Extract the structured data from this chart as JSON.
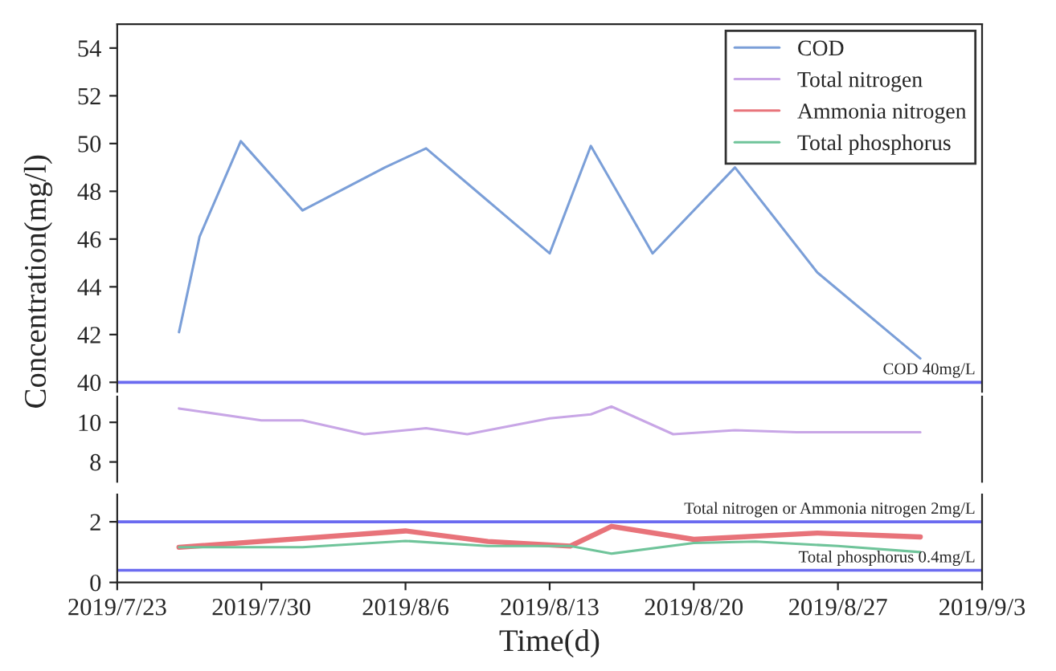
{
  "chart_data": [
    {
      "type": "line",
      "ylabel": "Concentration(mg/l)",
      "legend": "top right",
      "grid": false,
      "tick_labels": "y",
      "xlim": [
        "2019-07-23",
        "2019-09-03"
      ],
      "ylim": [
        39.6,
        55
      ],
      "yticks": [
        40,
        42,
        44,
        46,
        48,
        50,
        52,
        54
      ],
      "series": [
        {
          "name": "COD",
          "color": "#7b9fd8",
          "x": [
            "2019-07-26",
            "2019-07-27",
            "2019-07-29",
            "2019-08-01",
            "2019-08-03",
            "2019-08-05",
            "2019-08-07",
            "2019-08-10",
            "2019-08-13",
            "2019-08-15",
            "2019-08-18",
            "2019-08-22",
            "2019-08-26",
            "2019-08-31"
          ],
          "values": [
            42.1,
            46.1,
            50.1,
            47.2,
            48.1,
            49.0,
            49.8,
            47.6,
            45.4,
            49.9,
            45.4,
            49.0,
            44.6,
            41.0
          ]
        }
      ],
      "ref_lines": [
        {
          "axis": "y",
          "value": 40,
          "label": "COD 40mg/L",
          "color": "#6b6bf0"
        }
      ]
    },
    {
      "type": "line",
      "legend": "top right",
      "grid": false,
      "tick_labels": "y",
      "xlim": [
        "2019-07-23",
        "2019-09-03"
      ],
      "ylim": [
        7.0,
        11.3
      ],
      "yticks": [
        8,
        10
      ],
      "series": [
        {
          "name": "Total nitrogen",
          "color": "#c8a6e6",
          "x": [
            "2019-07-26",
            "2019-07-30",
            "2019-08-01",
            "2019-08-04",
            "2019-08-07",
            "2019-08-09",
            "2019-08-13",
            "2019-08-15",
            "2019-08-16",
            "2019-08-19",
            "2019-08-22",
            "2019-08-25",
            "2019-08-31"
          ],
          "values": [
            10.7,
            10.1,
            10.1,
            9.4,
            9.7,
            9.4,
            10.2,
            10.4,
            10.8,
            9.4,
            9.6,
            9.5,
            9.5
          ]
        }
      ]
    },
    {
      "type": "line",
      "xlabel": "Time(d)",
      "legend": "top right",
      "grid": false,
      "xlim": [
        "2019-07-23",
        "2019-09-03"
      ],
      "ylim": [
        0,
        2.9
      ],
      "yticks": [
        0,
        2
      ],
      "xticks": [
        {
          "value": "2019-07-23",
          "label": "2019/7/23"
        },
        {
          "value": "2019-07-30",
          "label": "2019/7/30"
        },
        {
          "value": "2019-08-06",
          "label": "2019/8/6"
        },
        {
          "value": "2019-08-13",
          "label": "2019/8/13"
        },
        {
          "value": "2019-08-20",
          "label": "2019/8/20"
        },
        {
          "value": "2019-08-27",
          "label": "2019/8/27"
        },
        {
          "value": "2019-09-03",
          "label": "2019/9/3"
        }
      ],
      "series": [
        {
          "name": "Ammonia nitrogen",
          "color": "#e8737a",
          "x": [
            "2019-07-26",
            "2019-08-06",
            "2019-08-10",
            "2019-08-14",
            "2019-08-16",
            "2019-08-20",
            "2019-08-26",
            "2019-08-31"
          ],
          "values": [
            1.16,
            1.7,
            1.35,
            1.2,
            1.85,
            1.42,
            1.63,
            1.5
          ]
        },
        {
          "name": "Total phosphorus",
          "color": "#6fc49a",
          "x": [
            "2019-07-26",
            "2019-08-01",
            "2019-08-06",
            "2019-08-10",
            "2019-08-14",
            "2019-08-16",
            "2019-08-20",
            "2019-08-23",
            "2019-08-27",
            "2019-08-31"
          ],
          "values": [
            1.16,
            1.16,
            1.37,
            1.2,
            1.2,
            0.95,
            1.3,
            1.35,
            1.2,
            1.0
          ]
        }
      ],
      "ref_lines": [
        {
          "axis": "y",
          "value": 2,
          "label": "Total nitrogen or Ammonia nitrogen 2mg/L",
          "color": "#6b6bf0"
        },
        {
          "axis": "y",
          "value": 0.4,
          "label": "Total phosphorus 0.4mg/L",
          "color": "#6b6bf0"
        }
      ]
    }
  ]
}
